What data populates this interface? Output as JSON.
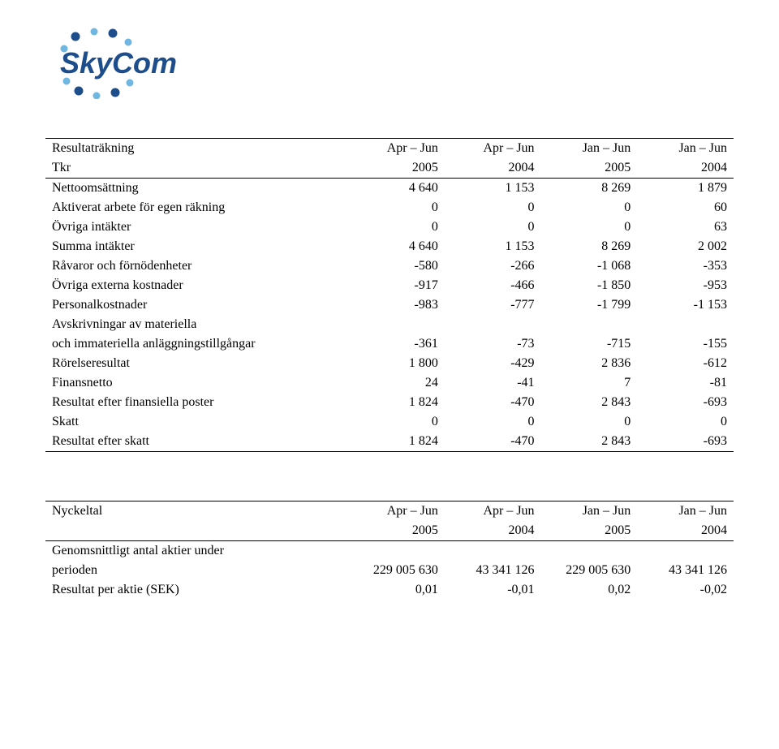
{
  "logo": {
    "text": "SkyCom",
    "text_color": "#1e4d8b",
    "dot_color_dark": "#1e4d8b",
    "dot_color_light": "#6fb6e0"
  },
  "table1": {
    "header": {
      "title": "Resultaträkning",
      "subhead": "Tkr",
      "periods": [
        "Apr – Jun",
        "Apr – Jun",
        "Jan – Jun",
        "Jan – Jun"
      ],
      "years": [
        "2005",
        "2004",
        "2005",
        "2004"
      ]
    },
    "rows": [
      {
        "label": "Nettoomsättning",
        "values": [
          "4 640",
          "1 153",
          "8 269",
          "1 879"
        ],
        "bold": false
      },
      {
        "label": "Aktiverat arbete för egen räkning",
        "values": [
          "0",
          "0",
          "0",
          "60"
        ],
        "bold": false
      },
      {
        "label": "Övriga intäkter",
        "values": [
          "0",
          "0",
          "0",
          "63"
        ],
        "bold": false
      },
      {
        "label": "Summa intäkter",
        "values": [
          "4 640",
          "1 153",
          "8 269",
          "2 002"
        ],
        "bold": true,
        "gap_after": true
      },
      {
        "label": "Råvaror och förnödenheter",
        "values": [
          "-580",
          "-266",
          "-1 068",
          "-353"
        ],
        "bold": false,
        "section_start": true
      },
      {
        "label": "Övriga externa kostnader",
        "values": [
          "-917",
          "-466",
          "-1 850",
          "-953"
        ],
        "bold": false
      },
      {
        "label": "Personalkostnader",
        "values": [
          "-983",
          "-777",
          "-1 799",
          "-1 153"
        ],
        "bold": false
      },
      {
        "label": "Avskrivningar av materiella",
        "values": [
          "",
          "",
          "",
          ""
        ],
        "bold": false
      },
      {
        "label": "och immateriella anläggningstillgångar",
        "values": [
          "-361",
          "-73",
          "-715",
          "-155"
        ],
        "bold": false
      },
      {
        "label": "Rörelseresultat",
        "values": [
          "1 800",
          "-429",
          "2 836",
          "-612"
        ],
        "bold": true
      },
      {
        "label": "Finansnetto",
        "values": [
          "24",
          "-41",
          "7",
          "-81"
        ],
        "bold": false
      },
      {
        "label": "Resultat efter finansiella poster",
        "values": [
          "1 824",
          "-470",
          "2 843",
          "-693"
        ],
        "bold": true
      },
      {
        "label": "Skatt",
        "values": [
          "0",
          "0",
          "0",
          "0"
        ],
        "bold": false
      },
      {
        "label": "Resultat efter skatt",
        "values": [
          "1 824",
          "-470",
          "2 843",
          "-693"
        ],
        "bold": true,
        "last": true
      }
    ]
  },
  "table2": {
    "header": {
      "title": "Nyckeltal",
      "periods": [
        "Apr – Jun",
        "Apr – Jun",
        "Jan – Jun",
        "Jan – Jun"
      ],
      "years": [
        "2005",
        "2004",
        "2005",
        "2004"
      ]
    },
    "rows": [
      {
        "label": "Genomsnittligt antal aktier under",
        "values": [
          "",
          "",
          "",
          ""
        ],
        "bold": false,
        "section_start": true
      },
      {
        "label": "perioden",
        "values": [
          "229 005 630",
          "43 341 126",
          "229 005 630",
          "43 341 126"
        ],
        "bold": false
      },
      {
        "label": "Resultat per aktie (SEK)",
        "values": [
          "0,01",
          "-0,01",
          "0,02",
          "-0,02"
        ],
        "bold": false
      }
    ]
  }
}
